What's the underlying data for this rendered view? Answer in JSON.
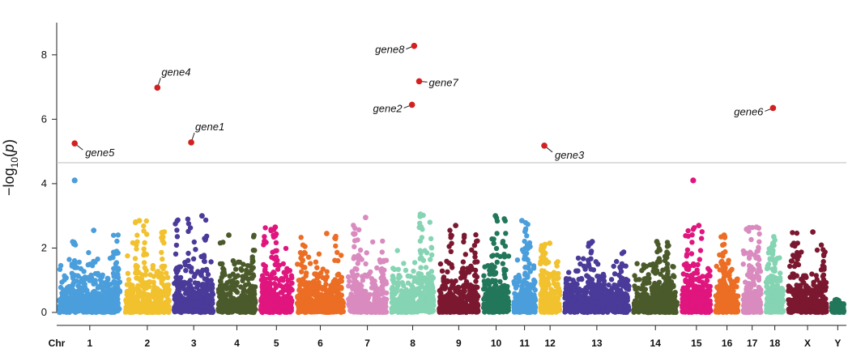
{
  "chart_data": {
    "type": "scatter",
    "subtype": "manhattan",
    "title": "",
    "xlabel": "Chr",
    "ylabel": "−log10(p)",
    "ylabel_parts": {
      "prefix": "−log",
      "subscript": "10",
      "open": "(",
      "italic": "p",
      "close": ")"
    },
    "ylim": [
      0,
      9
    ],
    "yticks": [
      0,
      2,
      4,
      6,
      8
    ],
    "threshold": 4.65,
    "grid": false,
    "legend": "none",
    "chromosomes": [
      {
        "name": "1",
        "start": 0,
        "end": 9.2,
        "color": "#4a9edb",
        "peak": 2.55
      },
      {
        "name": "2",
        "start": 9.2,
        "end": 16.0,
        "color": "#f2c12e",
        "peak": 2.85
      },
      {
        "name": "3",
        "start": 16.0,
        "end": 22.1,
        "color": "#4a3a99",
        "peak": 3.0
      },
      {
        "name": "4",
        "start": 22.1,
        "end": 28.0,
        "color": "#4b5a2a",
        "peak": 2.4
      },
      {
        "name": "5",
        "start": 28.0,
        "end": 33.1,
        "color": "#e0157e",
        "peak": 2.65
      },
      {
        "name": "6",
        "start": 33.1,
        "end": 40.2,
        "color": "#ec6d24",
        "peak": 2.45
      },
      {
        "name": "7",
        "start": 40.2,
        "end": 46.2,
        "color": "#d98bbf",
        "peak": 2.95
      },
      {
        "name": "8",
        "start": 46.2,
        "end": 52.8,
        "color": "#85d4b3",
        "peak": 3.05
      },
      {
        "name": "9",
        "start": 52.8,
        "end": 59.0,
        "color": "#7b1830",
        "peak": 2.7
      },
      {
        "name": "10",
        "start": 59.0,
        "end": 63.2,
        "color": "#22775a",
        "peak": 3.0
      },
      {
        "name": "11",
        "start": 63.2,
        "end": 66.9,
        "color": "#4a9edb",
        "peak": 2.85
      },
      {
        "name": "12",
        "start": 66.9,
        "end": 70.3,
        "color": "#f2c12e",
        "peak": 2.15
      },
      {
        "name": "13",
        "start": 70.3,
        "end": 79.9,
        "color": "#4a3a99",
        "peak": 2.2
      },
      {
        "name": "14",
        "start": 79.9,
        "end": 86.6,
        "color": "#4b5a2a",
        "peak": 2.2
      },
      {
        "name": "15",
        "start": 86.6,
        "end": 91.3,
        "color": "#e0157e",
        "peak": 2.7
      },
      {
        "name": "16",
        "start": 91.3,
        "end": 95.1,
        "color": "#ec6d24",
        "peak": 2.4
      },
      {
        "name": "17",
        "start": 95.1,
        "end": 98.3,
        "color": "#d98bbf",
        "peak": 2.65
      },
      {
        "name": "18",
        "start": 98.3,
        "end": 101.4,
        "color": "#85d4b3",
        "peak": 2.35
      },
      {
        "name": "X",
        "start": 101.4,
        "end": 107.4,
        "color": "#7b1830",
        "peak": 2.5
      },
      {
        "name": "Y",
        "start": 107.4,
        "end": 109.8,
        "color": "#22775a",
        "peak": 0.4
      }
    ],
    "extra_points": [
      {
        "x": 2.5,
        "y": 4.1,
        "color": "#4a9edb"
      },
      {
        "x": 88.5,
        "y": 4.1,
        "color": "#e0157e"
      }
    ],
    "significant_points": [
      {
        "label": "gene5",
        "x": 2.5,
        "y": 5.25,
        "label_side": "below-right"
      },
      {
        "label": "gene4",
        "x": 14.0,
        "y": 6.98,
        "label_side": "above-right"
      },
      {
        "label": "gene1",
        "x": 18.7,
        "y": 5.28,
        "label_side": "above-right"
      },
      {
        "label": "gene8",
        "x": 49.7,
        "y": 8.28,
        "label_side": "left"
      },
      {
        "label": "gene7",
        "x": 50.4,
        "y": 7.18,
        "label_side": "right"
      },
      {
        "label": "gene2",
        "x": 49.4,
        "y": 6.45,
        "label_side": "left"
      },
      {
        "label": "gene3",
        "x": 67.8,
        "y": 5.18,
        "label_side": "below-right"
      },
      {
        "label": "gene6",
        "x": 99.6,
        "y": 6.35,
        "label_side": "left"
      }
    ],
    "significant_color": "#d42020"
  }
}
